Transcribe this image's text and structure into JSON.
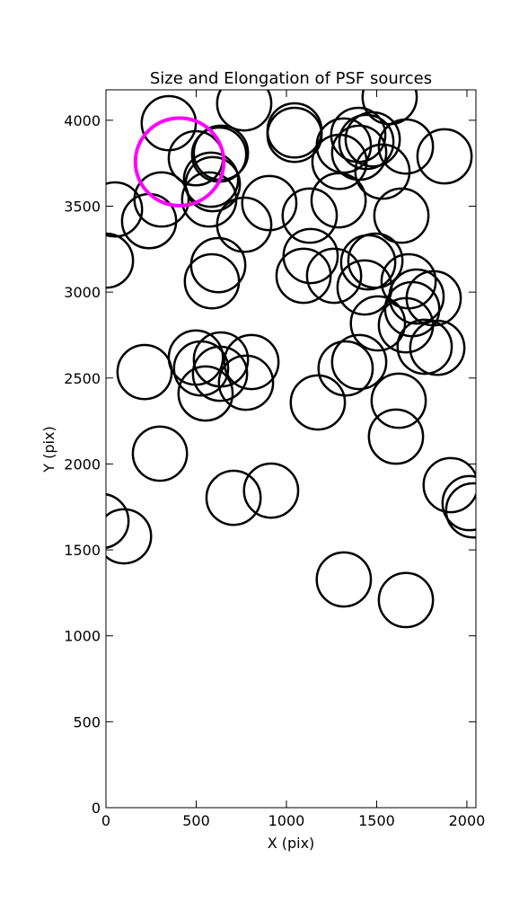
{
  "chart_data": {
    "type": "ellipse",
    "title": "Size and Elongation of PSF sources",
    "x_label": "X (pix)",
    "y_label": "Y (pix)",
    "xlim": [
      0,
      2050
    ],
    "ylim": [
      0,
      4177
    ],
    "xticks": [
      0,
      500,
      1000,
      1500,
      2000
    ],
    "yticks": [
      0,
      500,
      1000,
      1500,
      2000,
      2500,
      3000,
      3500,
      4000
    ],
    "series": [
      {
        "color": "#000000",
        "width": 300,
        "height": 315,
        "x": [
          348,
          766,
          1045,
          1045,
          1572,
          498,
          627,
          637,
          582,
          592,
          572,
          308,
          239,
          50,
          0,
          766,
          905,
          1129,
          1289,
          1318,
          1398,
          1443,
          1478,
          1403,
          1294,
          1532,
          1662,
          1876,
          1637,
          622,
          587,
          1134,
          1095,
          1264,
          1453,
          1493,
          1433,
          1677,
          1721,
          1816,
          1697,
          1662,
          1507,
          1766,
          1836,
          214,
          498,
          527,
          637,
          632,
          806,
          776,
          552,
          1328,
          1403,
          1622,
          1174,
          1607,
          299,
          707,
          915,
          1910,
          2015,
          2035,
          -25,
          100,
          1318,
          1662
        ],
        "y": [
          3983,
          4098,
          3941,
          3915,
          4135,
          3779,
          3800,
          3811,
          3654,
          3628,
          3539,
          3539,
          3413,
          3481,
          3183,
          3392,
          3518,
          3445,
          3534,
          3853,
          3915,
          3874,
          3889,
          3811,
          3758,
          3701,
          3847,
          3790,
          3445,
          3157,
          3063,
          3210,
          3095,
          3095,
          3173,
          3183,
          3027,
          3063,
          2974,
          2964,
          2901,
          2807,
          2818,
          2682,
          2676,
          2535,
          2619,
          2556,
          2608,
          2525,
          2593,
          2473,
          2410,
          2556,
          2593,
          2368,
          2358,
          2159,
          2060,
          1803,
          1845,
          1877,
          1772,
          1730,
          1668,
          1579,
          1328,
          1208
        ]
      },
      {
        "color": "#ff00ff",
        "width": 490,
        "height": 510,
        "x": [
          408
        ],
        "y": [
          3758
        ]
      }
    ]
  }
}
